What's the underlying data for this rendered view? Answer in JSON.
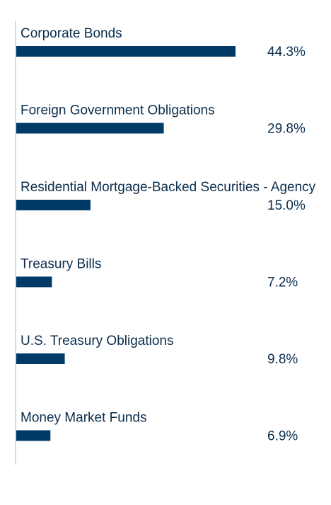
{
  "chart_data": {
    "type": "bar",
    "orientation": "horizontal",
    "categories": [
      "Corporate Bonds",
      "Foreign Government Obligations",
      "Residential Mortgage-Backed Securities - Agency",
      "Treasury Bills",
      "U.S. Treasury Obligations",
      "Money Market Funds"
    ],
    "values": [
      44.3,
      29.8,
      15.0,
      7.2,
      9.8,
      6.9
    ],
    "value_labels": [
      "44.3%",
      "29.8%",
      "15.0%",
      "7.2%",
      "9.8%",
      "6.9%"
    ],
    "xlim": [
      0,
      44.3
    ],
    "grid": false,
    "colors": {
      "bar": "#003a66",
      "axis": "#a8dbe6",
      "text": "#0b2d4d"
    }
  }
}
